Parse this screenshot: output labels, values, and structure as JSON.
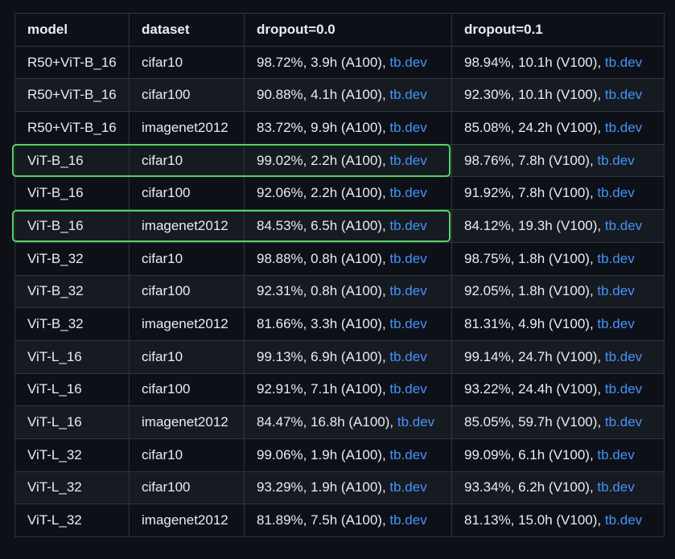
{
  "headers": [
    "model",
    "dataset",
    "dropout=0.0",
    "dropout=0.1"
  ],
  "link_text": "tb.dev",
  "rows": [
    {
      "model": "R50+ViT-B_16",
      "dataset": "cifar10",
      "d0": "98.72%, 3.9h (A100), ",
      "d1": "98.94%, 10.1h (V100), "
    },
    {
      "model": "R50+ViT-B_16",
      "dataset": "cifar100",
      "d0": "90.88%, 4.1h (A100), ",
      "d1": "92.30%, 10.1h (V100), "
    },
    {
      "model": "R50+ViT-B_16",
      "dataset": "imagenet2012",
      "d0": "83.72%, 9.9h (A100), ",
      "d1": "85.08%, 24.2h (V100), "
    },
    {
      "model": "ViT-B_16",
      "dataset": "cifar10",
      "d0": "99.02%, 2.2h (A100), ",
      "d1": "98.76%, 7.8h (V100), "
    },
    {
      "model": "ViT-B_16",
      "dataset": "cifar100",
      "d0": "92.06%, 2.2h (A100), ",
      "d1": "91.92%, 7.8h (V100), "
    },
    {
      "model": "ViT-B_16",
      "dataset": "imagenet2012",
      "d0": "84.53%, 6.5h (A100), ",
      "d1": "84.12%, 19.3h (V100), "
    },
    {
      "model": "ViT-B_32",
      "dataset": "cifar10",
      "d0": "98.88%, 0.8h (A100), ",
      "d1": "98.75%, 1.8h (V100), "
    },
    {
      "model": "ViT-B_32",
      "dataset": "cifar100",
      "d0": "92.31%, 0.8h (A100), ",
      "d1": "92.05%, 1.8h (V100), "
    },
    {
      "model": "ViT-B_32",
      "dataset": "imagenet2012",
      "d0": "81.66%, 3.3h (A100), ",
      "d1": "81.31%, 4.9h (V100), "
    },
    {
      "model": "ViT-L_16",
      "dataset": "cifar10",
      "d0": "99.13%, 6.9h (A100), ",
      "d1": "99.14%, 24.7h (V100), "
    },
    {
      "model": "ViT-L_16",
      "dataset": "cifar100",
      "d0": "92.91%, 7.1h (A100), ",
      "d1": "93.22%, 24.4h (V100), "
    },
    {
      "model": "ViT-L_16",
      "dataset": "imagenet2012",
      "d0": "84.47%, 16.8h (A100), ",
      "d1": "85.05%, 59.7h (V100), "
    },
    {
      "model": "ViT-L_32",
      "dataset": "cifar10",
      "d0": "99.06%, 1.9h (A100), ",
      "d1": "99.09%, 6.1h (V100), "
    },
    {
      "model": "ViT-L_32",
      "dataset": "cifar100",
      "d0": "93.29%, 1.9h (A100), ",
      "d1": "93.34%, 6.2h (V100), "
    },
    {
      "model": "ViT-L_32",
      "dataset": "imagenet2012",
      "d0": "81.89%, 7.5h (A100), ",
      "d1": "81.13%, 15.0h (V100), "
    }
  ],
  "highlighted_rows": [
    3,
    5
  ],
  "colors": {
    "background": "#0d1117",
    "row_alt": "#161b22",
    "border": "#30363d",
    "text": "#e6edf3",
    "link": "#4493f8",
    "highlight": "#56d364"
  }
}
